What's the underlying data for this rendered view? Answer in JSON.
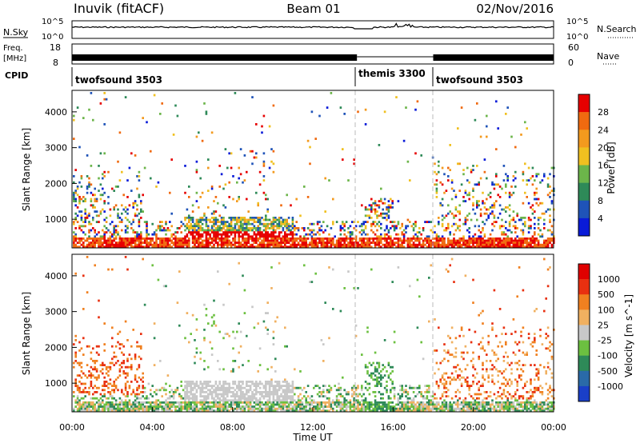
{
  "header": {
    "station": "Inuvik (fitACF)",
    "beam": "Beam 01",
    "date": "02/Nov/2016"
  },
  "status_panels": {
    "nsky_label": "N.Sky",
    "nsearch_label": "N.Search",
    "noise_ticks": [
      "10^5",
      "10^0"
    ],
    "freq_label_1": "Freq.",
    "freq_label_2": "[MHz]",
    "freq_ticks": [
      "18",
      "8"
    ],
    "nave_label": "Nave",
    "nave_ticks": [
      "60",
      "0"
    ],
    "cpid_label": "CPID",
    "cpid_segments": [
      {
        "name": "twofsound 3503",
        "start_hour": 0
      },
      {
        "name": "themis 3300",
        "start_hour": 14.2
      },
      {
        "name": "twofsound 3503",
        "start_hour": 18
      }
    ]
  },
  "axes": {
    "ylabel": "Slant Range [km]",
    "xlabel": "Time UT",
    "y_ticks": [
      "1000",
      "2000",
      "3000",
      "4000"
    ],
    "x_ticks": [
      "00:00",
      "04:00",
      "08:00",
      "12:00",
      "16:00",
      "20:00",
      "00:00"
    ]
  },
  "chart_data": [
    {
      "type": "heatmap",
      "x": "Time UT (hours)",
      "xlim": [
        0,
        24
      ],
      "ylim": [
        200,
        4600
      ],
      "colorbar_label": "Power [dB]",
      "colorbar_ticks": [
        "4",
        "8",
        "12",
        "16",
        "20",
        "24",
        "28"
      ],
      "colorbar_range": [
        0,
        32
      ],
      "colors": [
        "#0a1bd8",
        "#1f53b8",
        "#2e8a58",
        "#6cb54a",
        "#f0c020",
        "#f39a1e",
        "#f06a10",
        "#e60000"
      ],
      "mode_change_hours": [
        14.2,
        18
      ]
    },
    {
      "type": "heatmap",
      "x": "Time UT (hours)",
      "xlim": [
        0,
        24
      ],
      "ylim": [
        200,
        4600
      ],
      "colorbar_label": "Velocity [m s^-1]",
      "colorbar_ticks": [
        "1000",
        "500",
        "100",
        "25",
        "-25",
        "-100",
        "-500",
        "-1000"
      ],
      "colors": [
        "#1a3fc8",
        "#2a6aa8",
        "#2e8a58",
        "#6cc040",
        "#c8c8c8",
        "#f0b060",
        "#f08020",
        "#e83010",
        "#e00000"
      ],
      "mode_change_hours": [
        14.2,
        18
      ]
    }
  ]
}
